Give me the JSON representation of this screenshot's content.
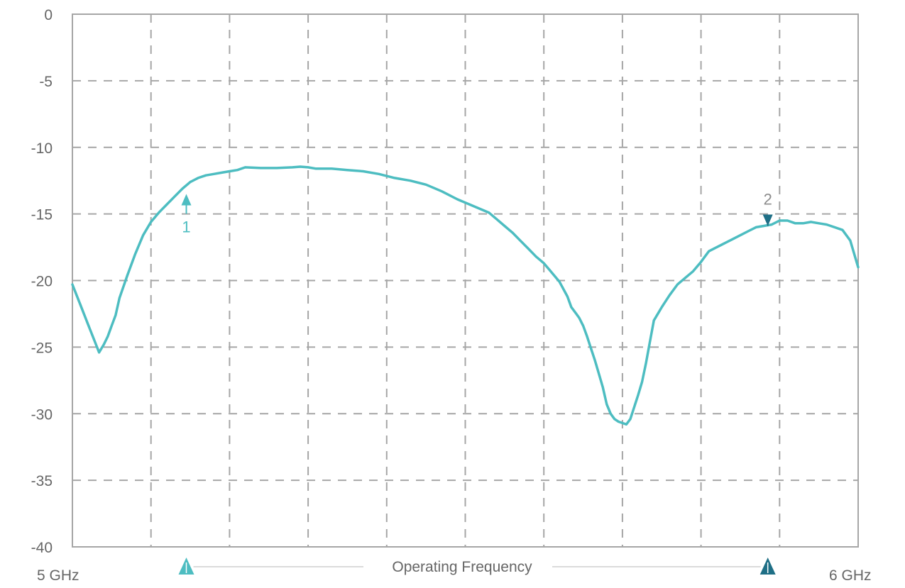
{
  "chart_data": {
    "type": "line",
    "title": "",
    "xlabel": "Operating Frequency",
    "ylabel": "",
    "x_tick_labels": [
      "5 GHz",
      "6 GHz"
    ],
    "xlim": [
      5.0,
      6.0
    ],
    "ylim": [
      -40,
      0
    ],
    "y_ticks": [
      0,
      -5,
      -10,
      -15,
      -20,
      -25,
      -30,
      -35,
      -40
    ],
    "grid": true,
    "series": [
      {
        "color": "#4dbdc1",
        "points": [
          [
            5.0,
            -20.3
          ],
          [
            5.01,
            -21.8
          ],
          [
            5.02,
            -23.3
          ],
          [
            5.03,
            -24.8
          ],
          [
            5.034,
            -25.4
          ],
          [
            5.04,
            -24.8
          ],
          [
            5.045,
            -24.2
          ],
          [
            5.05,
            -23.4
          ],
          [
            5.055,
            -22.6
          ],
          [
            5.06,
            -21.3
          ],
          [
            5.07,
            -19.6
          ],
          [
            5.08,
            -18.0
          ],
          [
            5.09,
            -16.6
          ],
          [
            5.1,
            -15.6
          ],
          [
            5.11,
            -14.9
          ],
          [
            5.12,
            -14.3
          ],
          [
            5.13,
            -13.7
          ],
          [
            5.14,
            -13.1
          ],
          [
            5.15,
            -12.6
          ],
          [
            5.16,
            -12.3
          ],
          [
            5.17,
            -12.1
          ],
          [
            5.18,
            -12.0
          ],
          [
            5.19,
            -11.9
          ],
          [
            5.2,
            -11.8
          ],
          [
            5.21,
            -11.7
          ],
          [
            5.22,
            -11.5
          ],
          [
            5.24,
            -11.55
          ],
          [
            5.26,
            -11.55
          ],
          [
            5.28,
            -11.5
          ],
          [
            5.29,
            -11.45
          ],
          [
            5.3,
            -11.5
          ],
          [
            5.31,
            -11.6
          ],
          [
            5.33,
            -11.6
          ],
          [
            5.35,
            -11.7
          ],
          [
            5.37,
            -11.8
          ],
          [
            5.39,
            -12.0
          ],
          [
            5.41,
            -12.3
          ],
          [
            5.43,
            -12.5
          ],
          [
            5.45,
            -12.8
          ],
          [
            5.47,
            -13.3
          ],
          [
            5.49,
            -13.9
          ],
          [
            5.51,
            -14.4
          ],
          [
            5.53,
            -14.9
          ],
          [
            5.54,
            -15.4
          ],
          [
            5.55,
            -15.9
          ],
          [
            5.56,
            -16.4
          ],
          [
            5.57,
            -17.0
          ],
          [
            5.58,
            -17.6
          ],
          [
            5.59,
            -18.2
          ],
          [
            5.6,
            -18.7
          ],
          [
            5.61,
            -19.4
          ],
          [
            5.62,
            -20.1
          ],
          [
            5.63,
            -21.2
          ],
          [
            5.635,
            -22.0
          ],
          [
            5.64,
            -22.4
          ],
          [
            5.645,
            -22.8
          ],
          [
            5.65,
            -23.4
          ],
          [
            5.655,
            -24.2
          ],
          [
            5.66,
            -25.1
          ],
          [
            5.665,
            -26.0
          ],
          [
            5.67,
            -27.0
          ],
          [
            5.675,
            -28.0
          ],
          [
            5.68,
            -29.3
          ],
          [
            5.685,
            -30.0
          ],
          [
            5.69,
            -30.4
          ],
          [
            5.695,
            -30.6
          ],
          [
            5.7,
            -30.7
          ],
          [
            5.705,
            -30.8
          ],
          [
            5.71,
            -30.4
          ],
          [
            5.715,
            -29.5
          ],
          [
            5.72,
            -28.6
          ],
          [
            5.725,
            -27.6
          ],
          [
            5.73,
            -26.2
          ],
          [
            5.735,
            -24.6
          ],
          [
            5.74,
            -23.0
          ],
          [
            5.75,
            -22.0
          ],
          [
            5.76,
            -21.1
          ],
          [
            5.77,
            -20.3
          ],
          [
            5.78,
            -19.8
          ],
          [
            5.79,
            -19.3
          ],
          [
            5.8,
            -18.6
          ],
          [
            5.81,
            -17.8
          ],
          [
            5.82,
            -17.5
          ],
          [
            5.83,
            -17.2
          ],
          [
            5.84,
            -16.9
          ],
          [
            5.85,
            -16.6
          ],
          [
            5.86,
            -16.3
          ],
          [
            5.87,
            -16.0
          ],
          [
            5.88,
            -15.9
          ],
          [
            5.89,
            -15.8
          ],
          [
            5.9,
            -15.5
          ],
          [
            5.91,
            -15.5
          ],
          [
            5.92,
            -15.7
          ],
          [
            5.93,
            -15.7
          ],
          [
            5.94,
            -15.6
          ],
          [
            5.95,
            -15.7
          ],
          [
            5.96,
            -15.8
          ],
          [
            5.97,
            -16.0
          ],
          [
            5.98,
            -16.2
          ],
          [
            5.99,
            -17.0
          ],
          [
            6.0,
            -19.0
          ]
        ]
      }
    ],
    "markers": [
      {
        "label": "1",
        "x": 5.145,
        "y": -13.5,
        "direction": "up",
        "color": "#4dbdc1",
        "text_color": "#4dbdc1"
      },
      {
        "label": "2",
        "x": 5.885,
        "y": -15.9,
        "direction": "down",
        "color": "#1f6f86",
        "text_color": "#8c8c8c"
      }
    ],
    "band_markers": [
      {
        "x": 5.145,
        "color": "#4dbdc1"
      },
      {
        "x": 5.885,
        "color": "#1f6f86"
      }
    ]
  }
}
